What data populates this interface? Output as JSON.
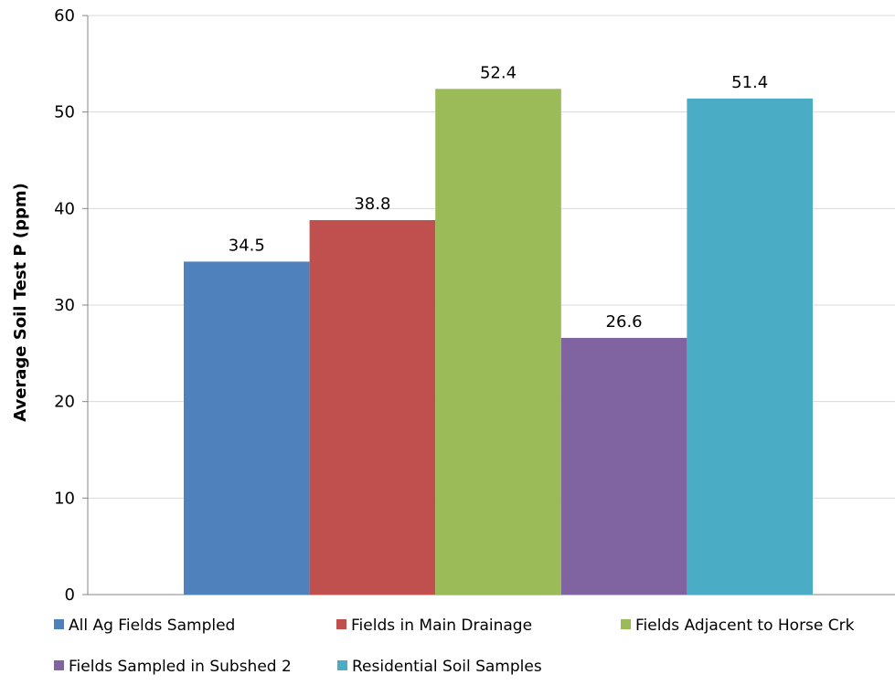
{
  "chart_data": {
    "type": "bar",
    "title": "",
    "xlabel": "",
    "ylabel": "Average Soil Test P (ppm)",
    "ylim": [
      0,
      60
    ],
    "yticks": [
      0,
      10,
      20,
      30,
      40,
      50,
      60
    ],
    "grid": true,
    "legend_position": "bottom",
    "series": [
      {
        "name": "All Ag Fields Sampled",
        "value": 34.5,
        "label": "34.5",
        "color": "#4f81bd"
      },
      {
        "name": "Fields in Main Drainage",
        "value": 38.8,
        "label": "38.8",
        "color": "#c0504d"
      },
      {
        "name": "Fields Adjacent to Horse Crk",
        "value": 52.4,
        "label": "52.4",
        "color": "#9bbb59"
      },
      {
        "name": "Fields Sampled in Subshed 2",
        "value": 26.6,
        "label": "26.6",
        "color": "#8064a2"
      },
      {
        "name": "Residential Soil Samples",
        "value": 51.4,
        "label": "51.4",
        "color": "#4bacc6"
      }
    ]
  }
}
